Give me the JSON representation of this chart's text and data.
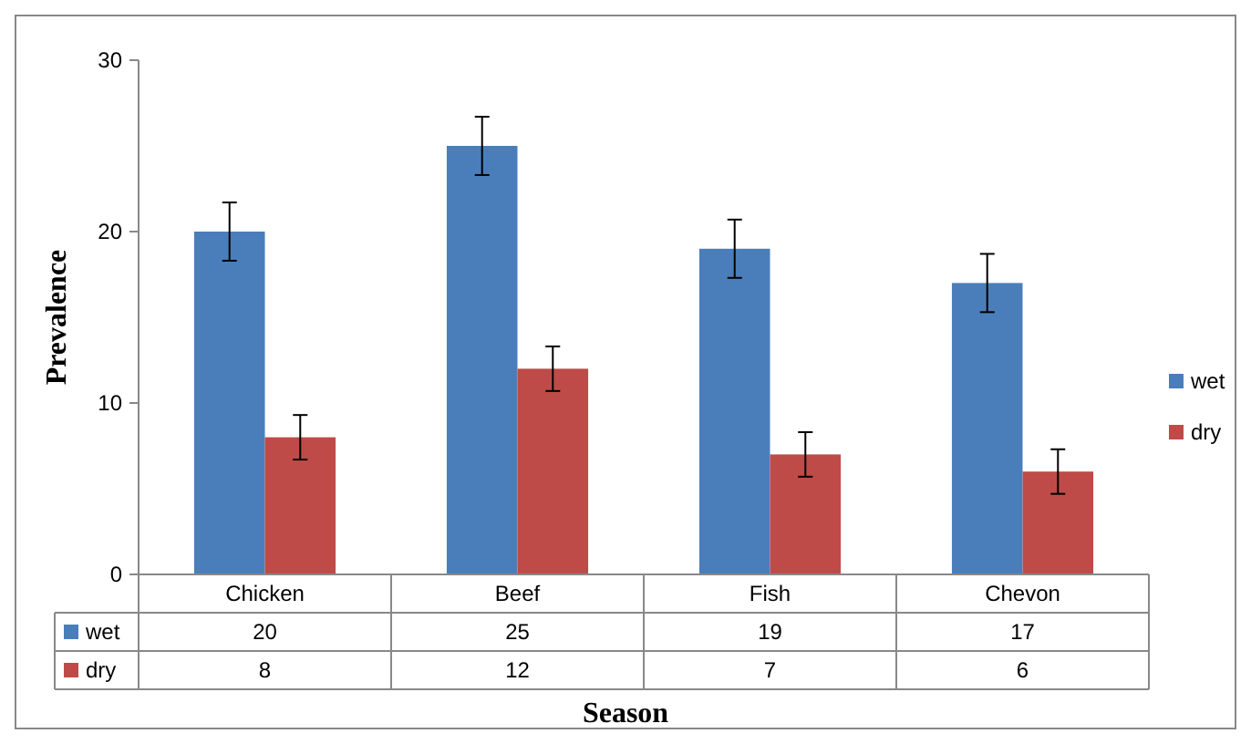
{
  "chart_data": {
    "type": "bar",
    "xlabel": "Season",
    "ylabel": "Prevalence",
    "categories": [
      "Chicken",
      "Beef",
      "Fish",
      "Chevon"
    ],
    "series": [
      {
        "name": "wet",
        "color": "#4a7ebb",
        "values": [
          20,
          25,
          19,
          17
        ],
        "errors": [
          1.7,
          1.7,
          1.7,
          1.7
        ]
      },
      {
        "name": "dry",
        "color": "#be4b48",
        "values": [
          8,
          12,
          7,
          6
        ],
        "errors": [
          1.3,
          1.3,
          1.3,
          1.3
        ]
      }
    ],
    "ylim": [
      0,
      30
    ],
    "yticks": [
      0,
      10,
      20,
      30
    ],
    "grid": false,
    "legend": "right",
    "data_labels": true
  }
}
